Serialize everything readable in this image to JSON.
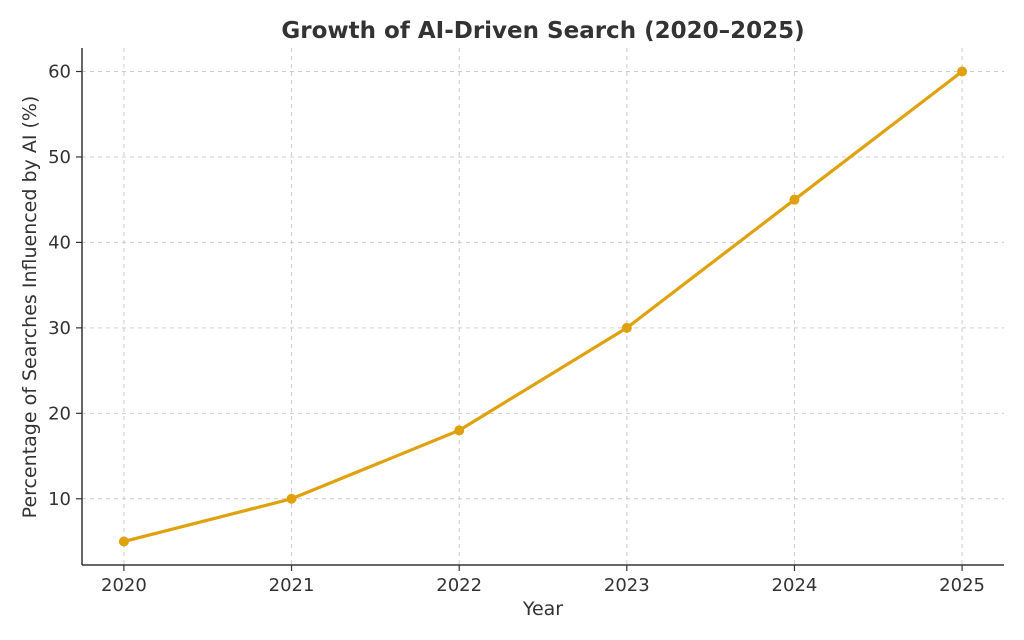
{
  "chart_data": {
    "type": "line",
    "title": "Growth of AI-Driven Search (2020–2025)",
    "xlabel": "Year",
    "ylabel": "Percentage of Searches Influenced by AI (%)",
    "x": [
      2020,
      2021,
      2022,
      2023,
      2024,
      2025
    ],
    "x_tick_labels": [
      "2020",
      "2021",
      "2022",
      "2023",
      "2024",
      "2025"
    ],
    "y_ticks": [
      10,
      20,
      30,
      40,
      50,
      60
    ],
    "xlim": [
      2019.75,
      2025.25
    ],
    "ylim": [
      2.25,
      62.75
    ],
    "grid": true,
    "series": [
      {
        "values": [
          5,
          10,
          18,
          30,
          45,
          60
        ],
        "color": "#E0A10E",
        "marker": "circle"
      }
    ]
  }
}
